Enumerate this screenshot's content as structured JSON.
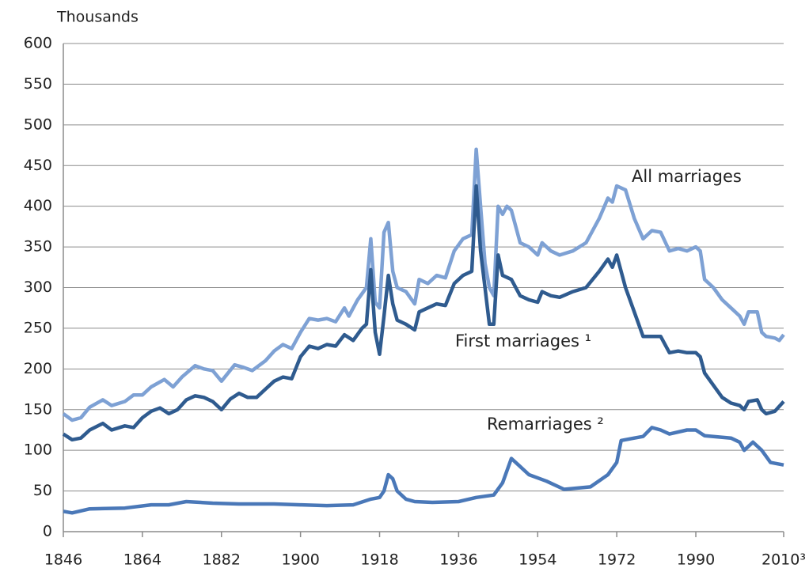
{
  "chart_data": {
    "type": "line",
    "y_axis_label": "Thousands",
    "xlim": [
      1846,
      2010
    ],
    "xticks": [
      1846,
      1864,
      1882,
      1900,
      1918,
      1936,
      1954,
      1972,
      1990,
      {
        "value": 2010,
        "label": "2010³"
      }
    ],
    "ylim": [
      0,
      600
    ],
    "yticks": [
      0,
      50,
      100,
      150,
      200,
      250,
      300,
      350,
      400,
      450,
      500,
      550,
      600
    ],
    "grid": true,
    "series": [
      {
        "name": "All marriages",
        "color": "#7ea1d4",
        "x": [
          1846,
          1848,
          1850,
          1852,
          1855,
          1857,
          1860,
          1862,
          1864,
          1866,
          1869,
          1871,
          1873,
          1876,
          1878,
          1880,
          1882,
          1885,
          1887,
          1889,
          1892,
          1894,
          1896,
          1898,
          1900,
          1902,
          1904,
          1906,
          1908,
          1910,
          1911,
          1913,
          1915,
          1916,
          1917,
          1918,
          1919,
          1920,
          1921,
          1922,
          1924,
          1926,
          1927,
          1929,
          1931,
          1933,
          1935,
          1937,
          1939,
          1940,
          1941,
          1942,
          1943,
          1944,
          1945,
          1946,
          1947,
          1948,
          1950,
          1952,
          1954,
          1955,
          1957,
          1959,
          1962,
          1965,
          1968,
          1970,
          1971,
          1972,
          1974,
          1976,
          1978,
          1980,
          1982,
          1984,
          1986,
          1988,
          1990,
          1991,
          1992,
          1994,
          1996,
          1998,
          2000,
          2001,
          2002,
          2004,
          2005,
          2006,
          2008,
          2009,
          2010
        ],
        "values": [
          145,
          137,
          140,
          153,
          162,
          155,
          160,
          168,
          168,
          178,
          187,
          178,
          190,
          204,
          200,
          198,
          185,
          205,
          202,
          198,
          210,
          222,
          230,
          225,
          245,
          262,
          260,
          262,
          258,
          275,
          265,
          285,
          300,
          360,
          282,
          275,
          368,
          380,
          320,
          300,
          295,
          280,
          310,
          305,
          315,
          312,
          345,
          360,
          365,
          470,
          400,
          330,
          300,
          290,
          400,
          390,
          400,
          395,
          355,
          350,
          340,
          355,
          345,
          340,
          345,
          355,
          385,
          410,
          405,
          425,
          420,
          385,
          360,
          370,
          368,
          345,
          348,
          345,
          350,
          345,
          310,
          300,
          285,
          275,
          265,
          255,
          270,
          270,
          245,
          240,
          238,
          235,
          242
        ]
      },
      {
        "name": "First marriages ¹",
        "color": "#2f5b8f",
        "x": [
          1846,
          1848,
          1850,
          1852,
          1855,
          1857,
          1860,
          1862,
          1864,
          1866,
          1868,
          1870,
          1872,
          1874,
          1876,
          1878,
          1880,
          1882,
          1884,
          1886,
          1888,
          1890,
          1892,
          1894,
          1896,
          1898,
          1900,
          1902,
          1904,
          1906,
          1908,
          1910,
          1912,
          1914,
          1915,
          1916,
          1917,
          1918,
          1919,
          1920,
          1921,
          1922,
          1924,
          1926,
          1927,
          1929,
          1931,
          1933,
          1935,
          1937,
          1939,
          1940,
          1941,
          1942,
          1943,
          1944,
          1945,
          1946,
          1948,
          1950,
          1952,
          1954,
          1955,
          1957,
          1959,
          1962,
          1965,
          1968,
          1970,
          1971,
          1972,
          1974,
          1976,
          1978,
          1980,
          1982,
          1984,
          1986,
          1988,
          1990,
          1991,
          1992,
          1994,
          1996,
          1998,
          2000,
          2001,
          2002,
          2004,
          2005,
          2006,
          2008,
          2010
        ],
        "values": [
          120,
          113,
          115,
          125,
          133,
          125,
          130,
          128,
          140,
          148,
          152,
          145,
          150,
          162,
          167,
          165,
          160,
          150,
          163,
          170,
          165,
          165,
          175,
          185,
          190,
          188,
          215,
          228,
          225,
          230,
          228,
          242,
          235,
          250,
          255,
          322,
          245,
          218,
          265,
          315,
          280,
          260,
          255,
          248,
          270,
          275,
          280,
          278,
          305,
          315,
          320,
          425,
          345,
          300,
          255,
          255,
          340,
          315,
          310,
          290,
          285,
          282,
          295,
          290,
          288,
          295,
          300,
          320,
          335,
          325,
          340,
          300,
          270,
          240,
          240,
          240,
          220,
          222,
          220,
          220,
          215,
          195,
          180,
          165,
          158,
          155,
          150,
          160,
          162,
          150,
          145,
          148,
          160
        ]
      },
      {
        "name": "Remarriages ²",
        "color": "#4a78b8",
        "x": [
          1846,
          1848,
          1852,
          1860,
          1866,
          1870,
          1874,
          1880,
          1886,
          1894,
          1900,
          1906,
          1912,
          1916,
          1918,
          1919,
          1920,
          1921,
          1922,
          1924,
          1926,
          1930,
          1936,
          1940,
          1944,
          1946,
          1948,
          1950,
          1952,
          1956,
          1960,
          1966,
          1970,
          1972,
          1973,
          1976,
          1978,
          1980,
          1982,
          1984,
          1988,
          1990,
          1992,
          1994,
          1998,
          2000,
          2001,
          2003,
          2005,
          2007,
          2010
        ],
        "values": [
          25,
          23,
          28,
          29,
          33,
          33,
          37,
          35,
          34,
          34,
          33,
          32,
          33,
          40,
          42,
          50,
          70,
          65,
          50,
          40,
          37,
          36,
          37,
          42,
          45,
          60,
          90,
          80,
          70,
          62,
          52,
          55,
          70,
          85,
          112,
          115,
          117,
          128,
          125,
          120,
          125,
          125,
          118,
          117,
          115,
          110,
          100,
          110,
          100,
          85,
          82
        ]
      }
    ]
  }
}
